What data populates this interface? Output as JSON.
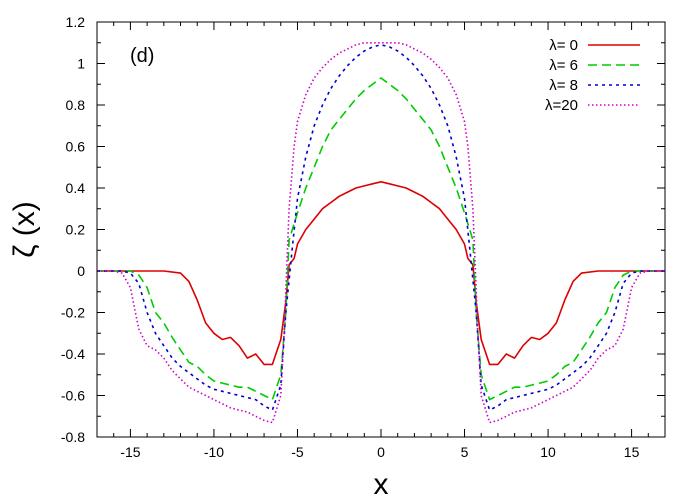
{
  "chart_data": {
    "type": "line",
    "panel_label": "(d)",
    "xlabel": "x",
    "ylabel": "ζ (x)",
    "xlim": [
      -17,
      17
    ],
    "ylim": [
      -0.8,
      1.2
    ],
    "xticks": [
      -15,
      -10,
      -5,
      0,
      5,
      10,
      15
    ],
    "xtick_labels": [
      "-15",
      "-10",
      "-5",
      "0",
      "5",
      "10",
      "15"
    ],
    "yticks": [
      -0.8,
      -0.6,
      -0.4,
      -0.2,
      0,
      0.2,
      0.4,
      0.6,
      0.8,
      1,
      1.2
    ],
    "ytick_labels": [
      "-0.8",
      "-0.6",
      "-0.4",
      "-0.2",
      "0",
      "0.2",
      "0.4",
      "0.6",
      "0.8",
      "1",
      "1.2"
    ],
    "grid": false,
    "legend_position": "top-right",
    "series": [
      {
        "name": "λ=  0",
        "color": "#dd0000",
        "dash": "solid",
        "x": [
          -17,
          -15,
          -13,
          -12,
          -11.5,
          -11,
          -10.5,
          -10,
          -9.5,
          -9,
          -8.5,
          -8,
          -7.5,
          -7,
          -6.5,
          -6,
          -5.7,
          -5.5,
          -5.2,
          -5,
          -4.5,
          -4,
          -3.5,
          -3,
          -2.5,
          -2,
          -1.5,
          -1,
          -0.5,
          0,
          0.5,
          1,
          1.5,
          2,
          2.5,
          3,
          3.5,
          4,
          4.5,
          5,
          5.2,
          5.5,
          5.7,
          6,
          6.5,
          7,
          7.5,
          8,
          8.5,
          9,
          9.5,
          10,
          10.5,
          11,
          11.5,
          12,
          13,
          15,
          17
        ],
        "y": [
          0,
          0,
          0,
          -0.01,
          -0.05,
          -0.14,
          -0.25,
          -0.3,
          -0.33,
          -0.32,
          -0.36,
          -0.42,
          -0.4,
          -0.45,
          -0.45,
          -0.33,
          -0.15,
          0.03,
          0.06,
          0.13,
          0.2,
          0.25,
          0.3,
          0.33,
          0.36,
          0.38,
          0.4,
          0.41,
          0.42,
          0.43,
          0.42,
          0.41,
          0.4,
          0.38,
          0.36,
          0.33,
          0.3,
          0.25,
          0.2,
          0.13,
          0.06,
          0.03,
          -0.15,
          -0.33,
          -0.45,
          -0.45,
          -0.4,
          -0.42,
          -0.36,
          -0.32,
          -0.33,
          -0.3,
          -0.25,
          -0.14,
          -0.05,
          -0.01,
          0,
          0,
          0
        ]
      },
      {
        "name": "λ=  6",
        "color": "#00cc00",
        "dash": "9,5",
        "x": [
          -17,
          -15,
          -14.5,
          -14,
          -13.5,
          -13,
          -12.5,
          -12,
          -11.5,
          -11,
          -10.5,
          -10,
          -9.5,
          -9,
          -8.5,
          -8,
          -7.5,
          -7,
          -6.5,
          -6,
          -5.7,
          -5.5,
          -5,
          -4.5,
          -4,
          -3.5,
          -3,
          -2.5,
          -2,
          -1.5,
          -1,
          -0.5,
          0,
          0.5,
          1,
          1.5,
          2,
          2.5,
          3,
          3.5,
          4,
          4.5,
          5,
          5.5,
          5.7,
          6,
          6.5,
          7,
          7.5,
          8,
          8.5,
          9,
          9.5,
          10,
          10.5,
          11,
          11.5,
          12,
          12.5,
          13,
          13.5,
          14,
          14.5,
          15,
          17
        ],
        "y": [
          0,
          0,
          -0.02,
          -0.08,
          -0.2,
          -0.25,
          -0.32,
          -0.38,
          -0.44,
          -0.46,
          -0.5,
          -0.53,
          -0.54,
          -0.55,
          -0.56,
          -0.56,
          -0.58,
          -0.6,
          -0.62,
          -0.5,
          -0.2,
          0.15,
          0.28,
          0.4,
          0.5,
          0.6,
          0.68,
          0.73,
          0.78,
          0.83,
          0.87,
          0.9,
          0.93,
          0.9,
          0.87,
          0.83,
          0.78,
          0.73,
          0.68,
          0.6,
          0.5,
          0.4,
          0.28,
          0.15,
          -0.2,
          -0.5,
          -0.62,
          -0.6,
          -0.58,
          -0.56,
          -0.56,
          -0.55,
          -0.54,
          -0.53,
          -0.5,
          -0.46,
          -0.44,
          -0.38,
          -0.32,
          -0.25,
          -0.2,
          -0.08,
          -0.02,
          0,
          0
        ]
      },
      {
        "name": "λ=  8",
        "color": "#0000cc",
        "dash": "3,4",
        "x": [
          -17,
          -15.5,
          -15,
          -14.5,
          -14,
          -13.5,
          -13,
          -12.5,
          -12,
          -11.5,
          -11,
          -10.5,
          -10,
          -9.5,
          -9,
          -8.5,
          -8,
          -7.5,
          -7,
          -6.5,
          -6,
          -5.7,
          -5.3,
          -5,
          -4.5,
          -4,
          -3.5,
          -3,
          -2.5,
          -2,
          -1.5,
          -1,
          -0.5,
          0,
          0.5,
          1,
          1.5,
          2,
          2.5,
          3,
          3.5,
          4,
          4.5,
          5,
          5.3,
          5.7,
          6,
          6.5,
          7,
          7.5,
          8,
          8.5,
          9,
          9.5,
          10,
          10.5,
          11,
          11.5,
          12,
          12.5,
          13,
          13.5,
          14,
          14.5,
          15,
          15.5,
          17
        ],
        "y": [
          0,
          0,
          -0.01,
          -0.06,
          -0.2,
          -0.3,
          -0.36,
          -0.42,
          -0.46,
          -0.49,
          -0.52,
          -0.55,
          -0.57,
          -0.58,
          -0.59,
          -0.6,
          -0.61,
          -0.62,
          -0.65,
          -0.67,
          -0.55,
          -0.2,
          0.12,
          0.35,
          0.55,
          0.7,
          0.8,
          0.88,
          0.94,
          0.99,
          1.03,
          1.06,
          1.08,
          1.09,
          1.08,
          1.06,
          1.03,
          0.99,
          0.94,
          0.88,
          0.8,
          0.7,
          0.55,
          0.35,
          0.12,
          -0.2,
          -0.55,
          -0.67,
          -0.65,
          -0.62,
          -0.61,
          -0.6,
          -0.59,
          -0.58,
          -0.57,
          -0.55,
          -0.52,
          -0.49,
          -0.46,
          -0.42,
          -0.36,
          -0.3,
          -0.2,
          -0.06,
          -0.01,
          0,
          0
        ]
      },
      {
        "name": "λ=20",
        "color": "#cc00cc",
        "dash": "1.5,2.5",
        "x": [
          -17,
          -16,
          -15.5,
          -15,
          -14.5,
          -14,
          -13.5,
          -13,
          -12.5,
          -12,
          -11.5,
          -11,
          -10.5,
          -10,
          -9.5,
          -9,
          -8.5,
          -8,
          -7.5,
          -7,
          -6.5,
          -6,
          -5.8,
          -5.5,
          -5.2,
          -5,
          -4.5,
          -4,
          -3.5,
          -3,
          -2.5,
          -2,
          -1.5,
          -1,
          -0.5,
          0,
          0.5,
          1,
          1.5,
          2,
          2.5,
          3,
          3.5,
          4,
          4.5,
          5,
          5.2,
          5.5,
          5.8,
          6,
          6.5,
          7,
          7.5,
          8,
          8.5,
          9,
          9.5,
          10,
          10.5,
          11,
          11.5,
          12,
          12.5,
          13,
          13.5,
          14,
          14.5,
          15,
          15.5,
          16,
          17
        ],
        "y": [
          0,
          0,
          -0.01,
          -0.08,
          -0.28,
          -0.36,
          -0.38,
          -0.42,
          -0.48,
          -0.52,
          -0.56,
          -0.58,
          -0.6,
          -0.62,
          -0.64,
          -0.66,
          -0.67,
          -0.68,
          -0.7,
          -0.72,
          -0.73,
          -0.6,
          -0.3,
          0.3,
          0.6,
          0.72,
          0.85,
          0.93,
          0.98,
          1.02,
          1.05,
          1.07,
          1.09,
          1.1,
          1.1,
          1.1,
          1.1,
          1.1,
          1.09,
          1.07,
          1.05,
          1.02,
          0.98,
          0.93,
          0.85,
          0.72,
          0.6,
          0.3,
          -0.3,
          -0.6,
          -0.73,
          -0.72,
          -0.7,
          -0.68,
          -0.67,
          -0.66,
          -0.64,
          -0.62,
          -0.6,
          -0.58,
          -0.56,
          -0.52,
          -0.48,
          -0.42,
          -0.38,
          -0.36,
          -0.28,
          -0.08,
          -0.01,
          0,
          0
        ]
      }
    ]
  }
}
